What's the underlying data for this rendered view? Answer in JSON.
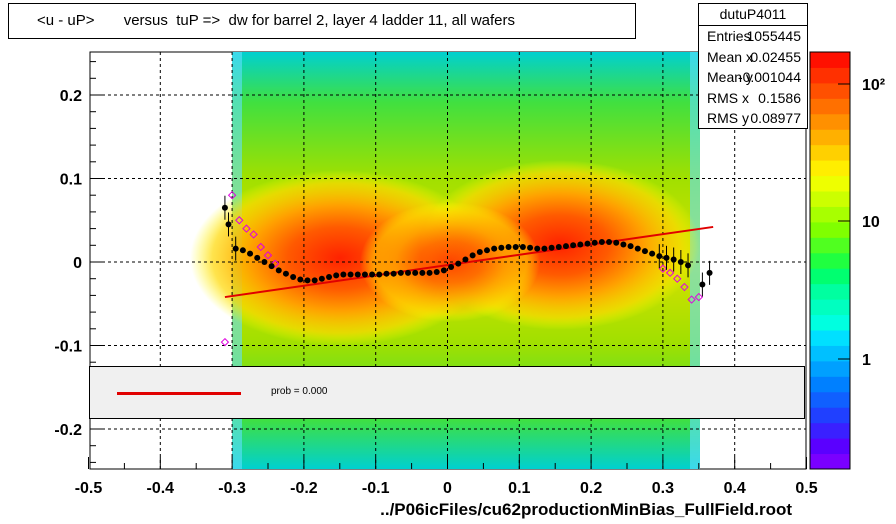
{
  "title": "<u - uP>       versus  tuP =>  dw for barrel 2, layer 4 ladder 11, all wafers",
  "stats": {
    "name": "dutuP4011",
    "rows": [
      {
        "label": "Entries",
        "value": "1055445"
      },
      {
        "label": "Mean x",
        "value": "0.02455"
      },
      {
        "label": "Mean y",
        "value": "-0.001044"
      },
      {
        "label": "RMS x",
        "value": "0.1586"
      },
      {
        "label": "RMS y",
        "value": "0.08977"
      }
    ]
  },
  "legend": {
    "text": "prob = 0.000"
  },
  "footer": "../P06icFiles/cu62productionMinBias_FullField.root",
  "colors": {
    "fit_line": "#e00000",
    "profile_points": "#000000",
    "open_markers": "#e000e0",
    "legend_bg": "#f0f0f0"
  },
  "chart_data": {
    "type": "heatmap",
    "xlim": [
      -0.5,
      0.5
    ],
    "ylim": [
      -0.25,
      0.25
    ],
    "x_ticks": [
      "-0.5",
      "-0.4",
      "-0.3",
      "-0.2",
      "-0.1",
      "0",
      "0.1",
      "0.2",
      "0.3",
      "0.4",
      "0.5"
    ],
    "y_ticks": [
      "-0.2",
      "-0.1",
      "0",
      "0.1",
      "0.2"
    ],
    "grid": true,
    "z_scale": "log",
    "z_ticks": [
      "1",
      "10",
      "10²"
    ],
    "profile_black": [
      {
        "x": -0.31,
        "y": 0.065
      },
      {
        "x": -0.305,
        "y": 0.045
      },
      {
        "x": -0.295,
        "y": 0.016
      },
      {
        "x": -0.285,
        "y": 0.014
      },
      {
        "x": -0.275,
        "y": 0.01
      },
      {
        "x": -0.265,
        "y": 0.005
      },
      {
        "x": -0.255,
        "y": 0.0
      },
      {
        "x": -0.245,
        "y": -0.005
      },
      {
        "x": -0.235,
        "y": -0.01
      },
      {
        "x": -0.225,
        "y": -0.014
      },
      {
        "x": -0.215,
        "y": -0.018
      },
      {
        "x": -0.205,
        "y": -0.021
      },
      {
        "x": -0.195,
        "y": -0.022
      },
      {
        "x": -0.185,
        "y": -0.022
      },
      {
        "x": -0.175,
        "y": -0.02
      },
      {
        "x": -0.165,
        "y": -0.018
      },
      {
        "x": -0.155,
        "y": -0.016
      },
      {
        "x": -0.145,
        "y": -0.015
      },
      {
        "x": -0.135,
        "y": -0.015
      },
      {
        "x": -0.125,
        "y": -0.015
      },
      {
        "x": -0.115,
        "y": -0.015
      },
      {
        "x": -0.105,
        "y": -0.015
      },
      {
        "x": -0.095,
        "y": -0.015
      },
      {
        "x": -0.085,
        "y": -0.014
      },
      {
        "x": -0.075,
        "y": -0.014
      },
      {
        "x": -0.065,
        "y": -0.013
      },
      {
        "x": -0.055,
        "y": -0.013
      },
      {
        "x": -0.045,
        "y": -0.013
      },
      {
        "x": -0.035,
        "y": -0.013
      },
      {
        "x": -0.025,
        "y": -0.013
      },
      {
        "x": -0.015,
        "y": -0.012
      },
      {
        "x": -0.005,
        "y": -0.01
      },
      {
        "x": 0.005,
        "y": -0.006
      },
      {
        "x": 0.015,
        "y": -0.002
      },
      {
        "x": 0.025,
        "y": 0.003
      },
      {
        "x": 0.035,
        "y": 0.008
      },
      {
        "x": 0.045,
        "y": 0.012
      },
      {
        "x": 0.055,
        "y": 0.014
      },
      {
        "x": 0.065,
        "y": 0.016
      },
      {
        "x": 0.075,
        "y": 0.017
      },
      {
        "x": 0.085,
        "y": 0.018
      },
      {
        "x": 0.095,
        "y": 0.018
      },
      {
        "x": 0.105,
        "y": 0.018
      },
      {
        "x": 0.115,
        "y": 0.017
      },
      {
        "x": 0.125,
        "y": 0.016
      },
      {
        "x": 0.135,
        "y": 0.016
      },
      {
        "x": 0.145,
        "y": 0.017
      },
      {
        "x": 0.155,
        "y": 0.018
      },
      {
        "x": 0.165,
        "y": 0.019
      },
      {
        "x": 0.175,
        "y": 0.02
      },
      {
        "x": 0.185,
        "y": 0.021
      },
      {
        "x": 0.195,
        "y": 0.022
      },
      {
        "x": 0.205,
        "y": 0.023
      },
      {
        "x": 0.215,
        "y": 0.024
      },
      {
        "x": 0.225,
        "y": 0.024
      },
      {
        "x": 0.235,
        "y": 0.023
      },
      {
        "x": 0.245,
        "y": 0.021
      },
      {
        "x": 0.255,
        "y": 0.019
      },
      {
        "x": 0.265,
        "y": 0.016
      },
      {
        "x": 0.275,
        "y": 0.013
      },
      {
        "x": 0.285,
        "y": 0.01
      },
      {
        "x": 0.295,
        "y": 0.007
      },
      {
        "x": 0.305,
        "y": 0.005
      },
      {
        "x": 0.315,
        "y": 0.003
      },
      {
        "x": 0.325,
        "y": 0.0
      },
      {
        "x": 0.335,
        "y": -0.004
      },
      {
        "x": 0.355,
        "y": -0.027
      },
      {
        "x": 0.365,
        "y": -0.013
      }
    ],
    "profile_magenta": [
      {
        "x": -0.31,
        "y": -0.096
      },
      {
        "x": -0.3,
        "y": 0.08
      },
      {
        "x": -0.29,
        "y": 0.05
      },
      {
        "x": -0.28,
        "y": 0.04
      },
      {
        "x": -0.27,
        "y": 0.033
      },
      {
        "x": -0.26,
        "y": 0.018
      },
      {
        "x": -0.25,
        "y": 0.008
      },
      {
        "x": -0.24,
        "y": -0.002
      },
      {
        "x": 0.3,
        "y": -0.008
      },
      {
        "x": 0.31,
        "y": -0.013
      },
      {
        "x": 0.32,
        "y": -0.02
      },
      {
        "x": 0.33,
        "y": -0.03
      },
      {
        "x": 0.34,
        "y": -0.045
      },
      {
        "x": 0.35,
        "y": -0.042
      }
    ],
    "fit_line": [
      {
        "x": -0.31,
        "y": -0.042
      },
      {
        "x": 0.37,
        "y": 0.042
      }
    ]
  }
}
